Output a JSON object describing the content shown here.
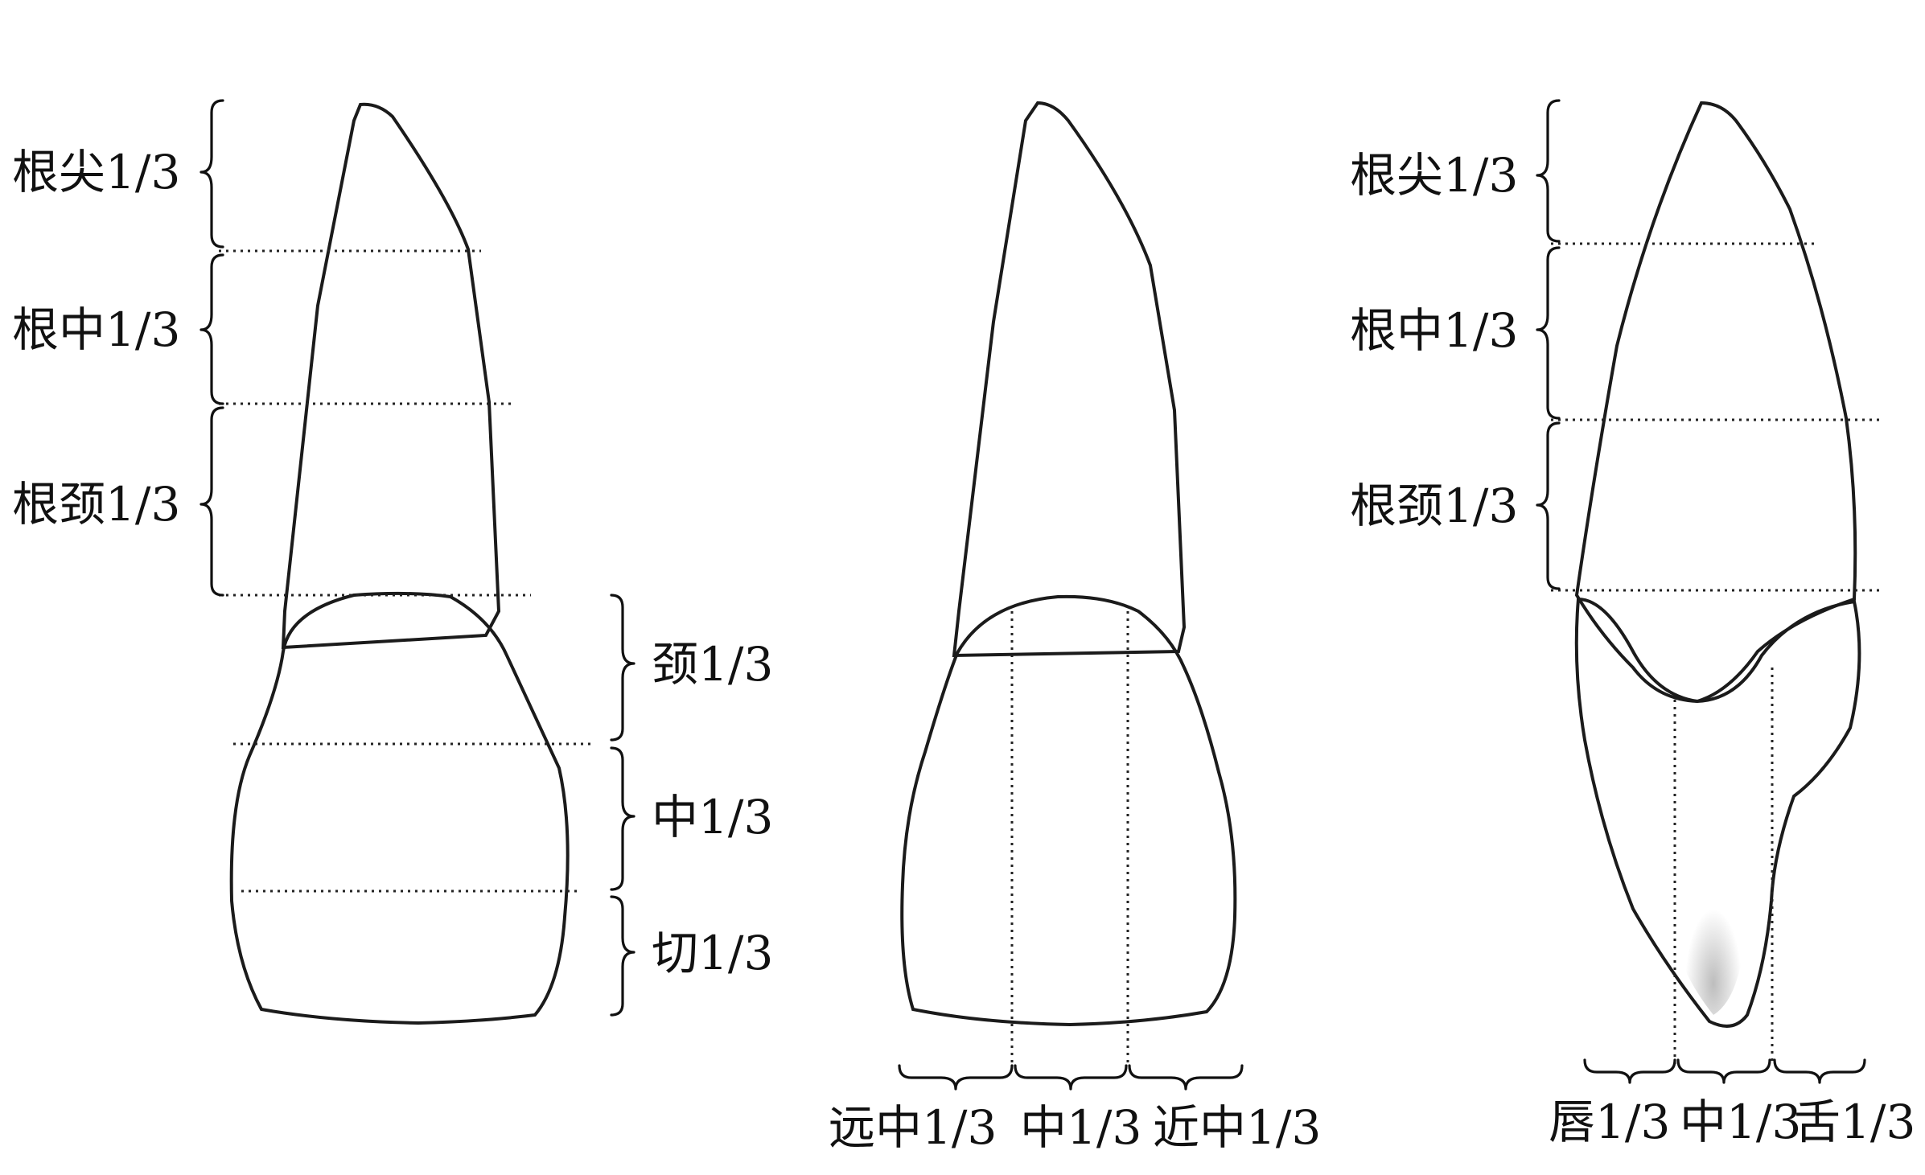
{
  "front_view": {
    "root_labels": [
      "根尖1/3",
      "根中1/3",
      "根颈1/3"
    ],
    "crown_labels": [
      "颈1/3",
      "中1/3",
      "切1/3"
    ]
  },
  "side_view": {
    "labels": [
      "远中1/3",
      "中1/3",
      "近中1/3"
    ]
  },
  "profile_view": {
    "root_labels": [
      "根尖1/3",
      "根中1/3",
      "根颈1/3"
    ],
    "bottom_labels": [
      "唇1/3",
      "中1/3",
      "舌1/3"
    ]
  }
}
